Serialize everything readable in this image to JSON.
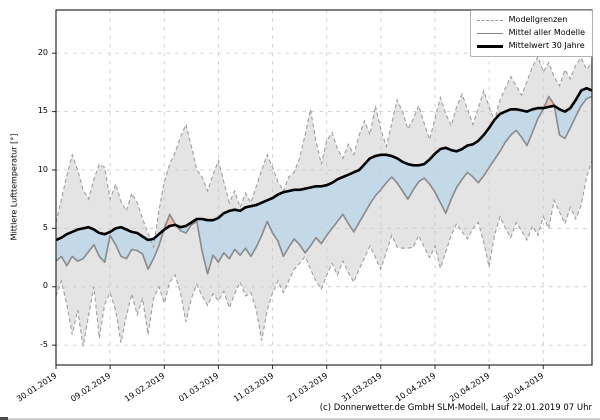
{
  "figure": {
    "caption": "(c) Donnerwetter.de GmbH SLM-Modell, Lauf 22.01.2019 07 Uhr"
  },
  "chart_data": {
    "type": "line",
    "title": "",
    "xlabel": "",
    "ylabel": "Mittlere Lufttemperatur [°]",
    "ylim": [
      -6.7,
      23.7
    ],
    "yticks": [
      -5,
      0,
      5,
      10,
      15,
      20
    ],
    "grid": true,
    "legend_position": "upper right",
    "x_days": 100,
    "xtick_days": [
      0,
      10,
      20,
      30,
      40,
      50,
      60,
      70,
      80,
      90
    ],
    "xtick_labels": [
      "30.01.2019",
      "09.02.2019",
      "19.02.2019",
      "01.03.2019",
      "11.03.2019",
      "21.03.2019",
      "31.03.2019",
      "10.04.2019",
      "20.04.2019",
      "30.04.2019"
    ],
    "colors": {
      "band_fill": "#e4e4e4",
      "band_edge": "#9e9e9e",
      "below_mean_fill": "#c3d9e8",
      "above_mean_fill": "#f0c0b1",
      "model_mean_line": "#8a8a8a",
      "climate_line": "#000000",
      "grid": "#cccccc",
      "frame": "#2a2a2a"
    },
    "series": [
      {
        "name": "Modellgrenzen",
        "role": "band",
        "upper": [
          5.5,
          7.5,
          9.5,
          11.3,
          10.0,
          8.3,
          7.5,
          9.2,
          10.5,
          10.2,
          7.5,
          8.8,
          7.3,
          6.5,
          8.0,
          7.2,
          5.8,
          4.6,
          3.4,
          6.5,
          9.0,
          10.5,
          11.5,
          12.8,
          13.9,
          12.0,
          10.0,
          9.4,
          8.2,
          9.6,
          10.8,
          9.0,
          7.2,
          8.2,
          6.8,
          8.0,
          7.2,
          8.6,
          10.0,
          11.3,
          10.2,
          9.0,
          8.2,
          9.4,
          9.8,
          11.0,
          13.0,
          15.2,
          12.5,
          10.5,
          12.5,
          13.2,
          11.8,
          11.0,
          12.2,
          11.3,
          13.0,
          14.2,
          13.0,
          15.5,
          13.5,
          12.0,
          14.0,
          16.0,
          15.0,
          13.5,
          14.4,
          15.5,
          14.0,
          12.6,
          14.4,
          16.2,
          14.8,
          13.8,
          15.4,
          16.5,
          15.2,
          13.9,
          15.3,
          16.8,
          15.4,
          14.2,
          16.0,
          17.0,
          18.0,
          17.2,
          16.4,
          17.6,
          18.8,
          19.7,
          18.4,
          19.2,
          18.0,
          17.2,
          18.6,
          17.8,
          19.0,
          19.6,
          18.6,
          19.2
        ],
        "lower": [
          -0.8,
          0.5,
          -1.5,
          -4.1,
          -2.0,
          -5.1,
          -2.5,
          0.0,
          -4.4,
          -1.5,
          -0.5,
          -2.0,
          -4.8,
          -2.5,
          -0.6,
          -2.4,
          -1.0,
          -4.1,
          -1.0,
          0.0,
          -1.4,
          0.4,
          1.0,
          -0.5,
          -3.0,
          -1.0,
          0.2,
          -0.8,
          -1.6,
          -0.6,
          -1.2,
          -0.4,
          -1.8,
          -0.6,
          0.4,
          -0.8,
          -0.5,
          -2.0,
          -4.6,
          -2.0,
          -0.5,
          0.5,
          -0.5,
          0.5,
          1.5,
          2.0,
          2.6,
          1.5,
          0.5,
          -0.2,
          1.0,
          2.0,
          1.0,
          2.2,
          1.2,
          0.4,
          1.5,
          2.5,
          3.5,
          2.5,
          1.5,
          3.0,
          4.4,
          3.4,
          3.3,
          3.3,
          3.4,
          4.4,
          3.4,
          2.5,
          3.5,
          1.6,
          3.0,
          4.4,
          5.4,
          4.7,
          4.1,
          5.0,
          5.5,
          3.8,
          1.7,
          4.4,
          6.0,
          5.0,
          4.2,
          5.5,
          4.8,
          4.0,
          5.2,
          4.4,
          6.0,
          5.0,
          7.4,
          6.4,
          5.4,
          6.8,
          5.8,
          7.0,
          9.4,
          10.8
        ]
      },
      {
        "name": "Mittel aller Modelle",
        "role": "line",
        "values": [
          2.2,
          2.6,
          1.8,
          2.6,
          2.2,
          2.4,
          3.0,
          3.6,
          2.6,
          2.1,
          4.4,
          3.6,
          2.6,
          2.4,
          3.2,
          3.1,
          2.8,
          1.5,
          2.4,
          3.5,
          5.0,
          6.2,
          5.4,
          4.8,
          4.6,
          5.3,
          5.6,
          3.0,
          1.1,
          2.7,
          2.1,
          2.9,
          2.4,
          3.2,
          2.7,
          3.3,
          2.6,
          3.4,
          4.4,
          5.6,
          4.6,
          3.9,
          2.6,
          3.4,
          4.1,
          3.6,
          2.9,
          3.5,
          4.2,
          3.7,
          4.4,
          5.0,
          5.6,
          6.2,
          5.4,
          4.7,
          5.5,
          6.3,
          7.1,
          7.8,
          8.3,
          8.9,
          9.4,
          8.9,
          8.2,
          7.5,
          8.3,
          9.0,
          9.3,
          8.8,
          8.1,
          7.2,
          6.3,
          7.5,
          8.5,
          9.2,
          9.8,
          9.4,
          8.9,
          9.5,
          10.2,
          10.9,
          11.6,
          12.4,
          13.0,
          13.4,
          12.8,
          12.1,
          13.2,
          14.4,
          15.2,
          16.3,
          15.6,
          13.0,
          12.7,
          13.6,
          14.6,
          15.5,
          16.1,
          16.3
        ]
      },
      {
        "name": "Mittelwert 30 Jahre",
        "role": "line",
        "values": [
          4.0,
          4.2,
          4.5,
          4.7,
          4.9,
          5.0,
          5.1,
          4.9,
          4.6,
          4.5,
          4.7,
          5.0,
          5.1,
          4.9,
          4.7,
          4.6,
          4.3,
          4.0,
          4.1,
          4.5,
          4.9,
          5.2,
          5.3,
          5.1,
          5.2,
          5.5,
          5.8,
          5.8,
          5.7,
          5.7,
          5.9,
          6.3,
          6.5,
          6.6,
          6.5,
          6.8,
          6.9,
          7.0,
          7.2,
          7.4,
          7.6,
          7.9,
          8.1,
          8.2,
          8.3,
          8.3,
          8.4,
          8.5,
          8.6,
          8.6,
          8.7,
          8.9,
          9.2,
          9.4,
          9.6,
          9.8,
          10.0,
          10.5,
          11.0,
          11.2,
          11.3,
          11.3,
          11.2,
          11.0,
          10.7,
          10.5,
          10.4,
          10.4,
          10.5,
          10.9,
          11.4,
          11.8,
          11.9,
          11.7,
          11.6,
          11.8,
          12.1,
          12.2,
          12.5,
          13.0,
          13.6,
          14.3,
          14.8,
          15.0,
          15.2,
          15.2,
          15.1,
          15.0,
          15.2,
          15.3,
          15.3,
          15.4,
          15.5,
          15.2,
          15.0,
          15.3,
          16.0,
          16.8,
          17.0,
          16.8
        ]
      }
    ]
  }
}
